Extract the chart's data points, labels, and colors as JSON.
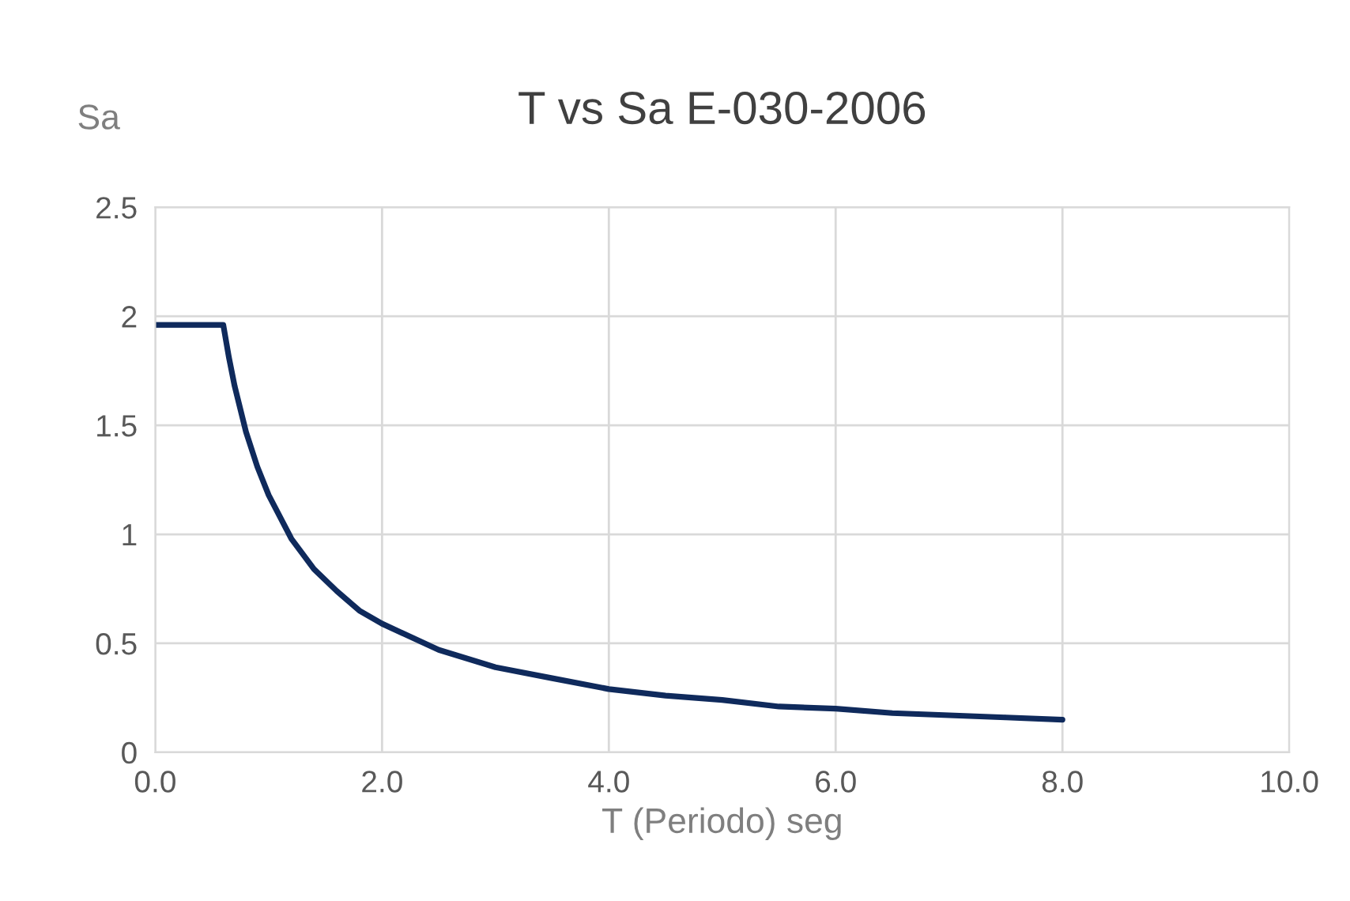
{
  "chart_data": {
    "type": "line",
    "title": "T vs Sa E-030-2006",
    "xlabel": "T (Periodo) seg",
    "ylabel": "Sa",
    "x": [
      0,
      0.2,
      0.4,
      0.55,
      0.6,
      0.65,
      0.7,
      0.8,
      0.9,
      1.0,
      1.2,
      1.4,
      1.6,
      1.8,
      2.0,
      2.5,
      3.0,
      3.5,
      4.0,
      4.5,
      5.0,
      5.5,
      6.0,
      6.5,
      7.0,
      7.5,
      8.0
    ],
    "series": [
      {
        "color": "#0f2a5c",
        "values": [
          1.96,
          1.96,
          1.96,
          1.96,
          1.96,
          1.81,
          1.68,
          1.47,
          1.31,
          1.18,
          0.98,
          0.84,
          0.74,
          0.65,
          0.59,
          0.47,
          0.39,
          0.34,
          0.29,
          0.26,
          0.24,
          0.21,
          0.2,
          0.18,
          0.17,
          0.16,
          0.15
        ]
      }
    ],
    "xlim": [
      0,
      10
    ],
    "xticks": [
      {
        "value": 0,
        "label": "0.0"
      },
      {
        "value": 2,
        "label": "2.0"
      },
      {
        "value": 4,
        "label": "4.0"
      },
      {
        "value": 6,
        "label": "6.0"
      },
      {
        "value": 8,
        "label": "8.0"
      },
      {
        "value": 10,
        "label": "10.0"
      }
    ],
    "ylim": [
      0,
      2.5
    ],
    "yticks": [
      0,
      0.5,
      1,
      1.5,
      2,
      2.5
    ],
    "grid": true,
    "legend": false,
    "line_style": "solid",
    "marker": "none"
  }
}
